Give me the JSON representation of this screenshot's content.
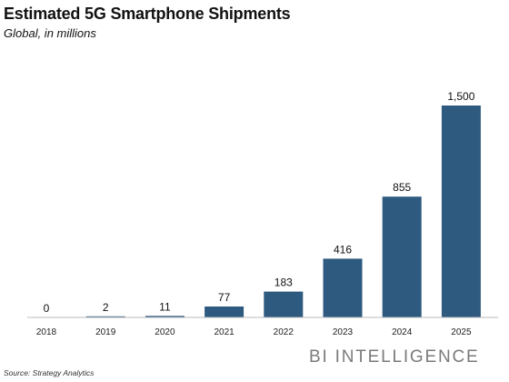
{
  "chart_data": {
    "type": "bar",
    "title": "Estimated 5G Smartphone Shipments",
    "subtitle": "Global, in millions",
    "xlabel": "",
    "ylabel": "",
    "categories": [
      "2018",
      "2019",
      "2020",
      "2021",
      "2022",
      "2023",
      "2024",
      "2025"
    ],
    "values": [
      0,
      2,
      11,
      77,
      183,
      416,
      855,
      1500
    ],
    "value_labels": [
      "0",
      "2",
      "11",
      "77",
      "183",
      "416",
      "855",
      "1,500"
    ],
    "ylim": [
      0,
      1500
    ],
    "grid": false,
    "legend": "none",
    "bar_color": "#2e5a7f",
    "baseline_color": "#bbbbbb"
  },
  "branding": "BI INTELLIGENCE",
  "source": "Source: Strategy Analytics"
}
